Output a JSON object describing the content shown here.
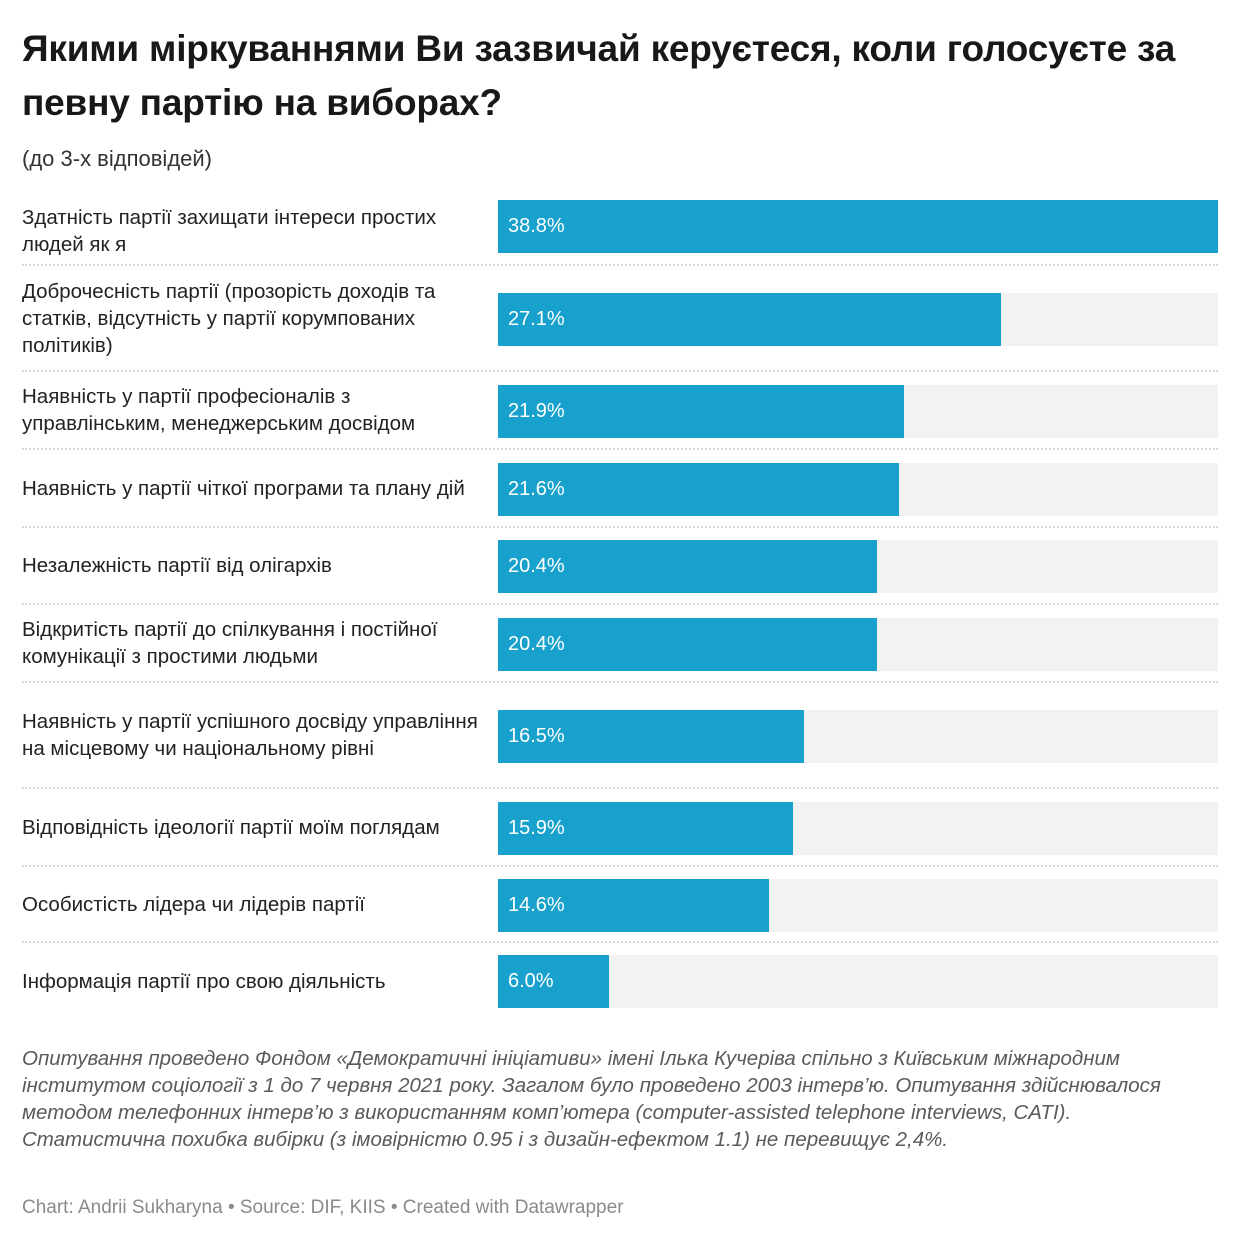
{
  "header": {
    "title": "Якими міркуваннями Ви зазвичай керуєтеся, коли голосуєте за певну партію на виборах?",
    "subtitle": "(до 3-х відповідей)"
  },
  "colors": {
    "bar": "#18a1cd",
    "track": "#f2f2f2",
    "value_text": "#ffffff"
  },
  "chart_data": {
    "type": "bar",
    "orientation": "horizontal",
    "title": "Якими міркуваннями Ви зазвичай керуєтеся, коли голосуєте за певну партію на виборах?",
    "subtitle": "(до 3-х відповідей)",
    "xlabel": "",
    "ylabel": "",
    "unit": "%",
    "xlim": [
      0,
      38.8
    ],
    "grid": false,
    "categories": [
      "Здатність партії захищати інтереси простих людей як я",
      "Доброчесність партії (прозорість доходів та статків, відсутність у партії корумпованих політиків)",
      "Наявність у партії професіоналів з управлінським, менеджерським досвідом",
      "Наявність у партії чіткої програми та плану дій",
      "Незалежність партії від олігархів",
      "Відкритість партії до спілкування і постійної комунікації з простими людьми",
      "Наявність у партії успішного досвіду управління на місцевому чи національному рівні",
      "Відповідність ідеології партії моїм поглядам",
      "Особистість лідера чи лідерів партії",
      "Інформація партії про свою діяльність"
    ],
    "values": [
      38.8,
      27.1,
      21.9,
      21.6,
      20.4,
      20.4,
      16.5,
      15.9,
      14.6,
      6.0
    ],
    "value_labels": [
      "38.8%",
      "27.1%",
      "21.9%",
      "21.6%",
      "20.4%",
      "20.4%",
      "16.5%",
      "15.9%",
      "14.6%",
      "6.0%"
    ]
  },
  "footer": {
    "notes": "Опитування проведено Фондом «Демократичні ініціативи» імені Ілька Кучеріва спільно з Київським міжнародним інститутом соціології з 1 до 7 червня 2021 року. Загалом було проведено 2003 інтерв’ю. Опитування здійснювалося методом телефонних інтерв’ю з використанням комп’ютера (computer-assisted telephone interviews, CATI). Статистична похибка вибірки (з імовірністю 0.95 і з дизайн-ефектом 1.1) не перевищує 2,4%.",
    "credit": "Chart: Andrii Sukharyna • Source: DIF, KIIS • Created with Datawrapper"
  }
}
